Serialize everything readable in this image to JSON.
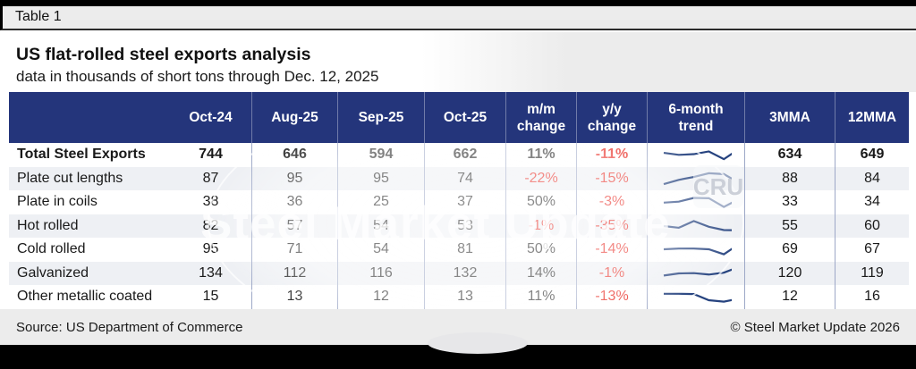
{
  "meta": {
    "table_label": "Table 1",
    "title": "US flat-rolled steel exports analysis",
    "subtitle": "data in thousands of short tons through Dec. 12, 2025",
    "source": "Source: US Department of Commerce",
    "copyright": "© Steel Market Update 2026"
  },
  "watermark": {
    "text": "Steel Market Update",
    "logo": "CRU"
  },
  "colors": {
    "header_bg": "#24357B",
    "negative_red": "#E8251D",
    "row_stripe": "#EEF0F4",
    "separator": "#9DA8C7",
    "sparkline": "#26437F",
    "band_gray": "#ececec",
    "bar_black": "#000000"
  },
  "chart_data": {
    "type": "table",
    "title": "US flat-rolled steel exports analysis",
    "subtitle": "data in thousands of short tons through Dec. 12, 2025",
    "columns": [
      "",
      "Oct-24",
      "Aug-25",
      "Sep-25",
      "Oct-25",
      "m/m change",
      "y/y change",
      "6-month trend",
      "3MMA",
      "12MMA"
    ],
    "rows": [
      {
        "label": "Total Steel Exports",
        "oct24": 744,
        "aug25": 646,
        "sep25": 594,
        "oct25": 662,
        "mm": "11%",
        "yy": "-11%",
        "mma3": 634,
        "mma12": 649,
        "trend": [
          0.62,
          0.48,
          0.53,
          0.72,
          0.18,
          0.88
        ]
      },
      {
        "label": "Plate cut lengths",
        "oct24": 87,
        "aug25": 95,
        "sep25": 95,
        "oct25": 74,
        "mm": "-22%",
        "yy": "-15%",
        "mma3": 88,
        "mma12": 84,
        "trend": [
          0.12,
          0.42,
          0.62,
          0.88,
          0.82,
          0.22
        ]
      },
      {
        "label": "Plate in coils",
        "oct24": 38,
        "aug25": 36,
        "sep25": 25,
        "oct25": 37,
        "mm": "50%",
        "yy": "-3%",
        "mma3": 33,
        "mma12": 34,
        "trend": [
          0.45,
          0.52,
          0.78,
          0.76,
          0.15,
          0.7
        ]
      },
      {
        "label": "Hot rolled",
        "oct24": 82,
        "aug25": 57,
        "sep25": 54,
        "oct25": 53,
        "mm": "-1%",
        "yy": "-35%",
        "mma3": 55,
        "mma12": 60,
        "trend": [
          0.5,
          0.38,
          0.85,
          0.45,
          0.22,
          0.2
        ]
      },
      {
        "label": "Cold rolled",
        "oct24": 95,
        "aug25": 71,
        "sep25": 54,
        "oct25": 81,
        "mm": "50%",
        "yy": "-14%",
        "mma3": 69,
        "mma12": 67,
        "trend": [
          0.5,
          0.55,
          0.55,
          0.5,
          0.15,
          0.85
        ]
      },
      {
        "label": "Galvanized",
        "oct24": 134,
        "aug25": 112,
        "sep25": 116,
        "oct25": 132,
        "mm": "14%",
        "yy": "-1%",
        "mma3": 120,
        "mma12": 119,
        "trend": [
          0.35,
          0.5,
          0.52,
          0.42,
          0.55,
          0.95
        ]
      },
      {
        "label": "Other metallic coated",
        "oct24": 15,
        "aug25": 13,
        "sep25": 12,
        "oct25": 13,
        "mm": "11%",
        "yy": "-13%",
        "mma3": 12,
        "mma12": 16,
        "trend": [
          0.7,
          0.7,
          0.68,
          0.25,
          0.15,
          0.35
        ]
      }
    ]
  }
}
